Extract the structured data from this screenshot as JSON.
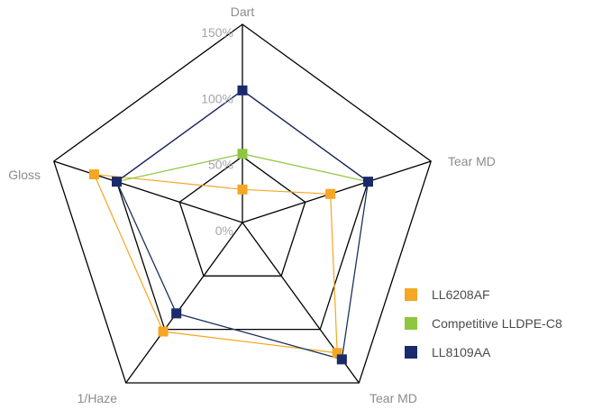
{
  "chart_data": {
    "type": "radar",
    "axes": [
      "Dart",
      "Tear MD",
      "Tear MD",
      "1/Haze",
      "Gloss"
    ],
    "tick_labels": [
      "0%",
      "50%",
      "100%",
      "150%"
    ],
    "range": [
      0,
      150
    ],
    "grid": true,
    "legend_position": "right",
    "series": [
      {
        "name": "LL6208AF",
        "color": "#f5a623",
        "values": [
          25,
          70,
          122,
          102,
          118
        ]
      },
      {
        "name": "Competitive LLDPE-C8",
        "color": "#8dc63f",
        "values": [
          52,
          100,
          128,
          85,
          100
        ]
      },
      {
        "name": "LL8109AA",
        "color": "#1a2a6c",
        "values": [
          100,
          100,
          128,
          85,
          100
        ]
      }
    ]
  },
  "legend": {
    "items": [
      {
        "label": "LL6208AF",
        "color": "#f5a623"
      },
      {
        "label": "Competitive LLDPE-C8",
        "color": "#8dc63f"
      },
      {
        "label": "LL8109AA",
        "color": "#1a2a6c"
      }
    ]
  }
}
